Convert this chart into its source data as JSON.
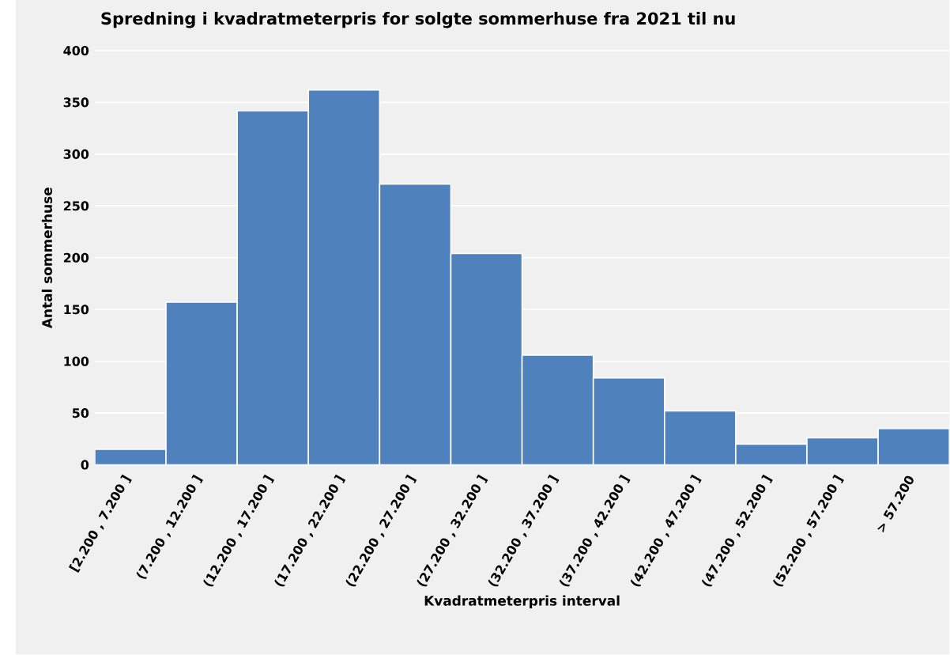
{
  "chart_data": {
    "type": "bar",
    "title": "Spredning i kvadratmeterpris for solgte sommerhuse fra 2021 til nu",
    "xlabel": "Kvadratmeterpris interval",
    "ylabel": "Antal sommerhuse",
    "categories": [
      "[2.200 , 7.200 ]",
      "(7.200 , 12.200 ]",
      "(12.200 , 17.200 ]",
      "(17.200 , 22.200 ]",
      "(22.200 , 27.200 ]",
      "(27.200 , 32.200 ]",
      "(32.200 , 37.200 ]",
      "(37.200 , 42.200 ]",
      "(42.200 , 47.200 ]",
      "(47.200 , 52.200 ]",
      "(52.200 , 57.200 ]",
      "> 57.200"
    ],
    "values": [
      15,
      157,
      342,
      362,
      271,
      204,
      106,
      84,
      52,
      20,
      26,
      35
    ],
    "color": "#4f81bd",
    "ylim": [
      0,
      400
    ],
    "yticks": [
      0,
      50,
      100,
      150,
      200,
      250,
      300,
      350,
      400
    ],
    "grid": "y"
  }
}
